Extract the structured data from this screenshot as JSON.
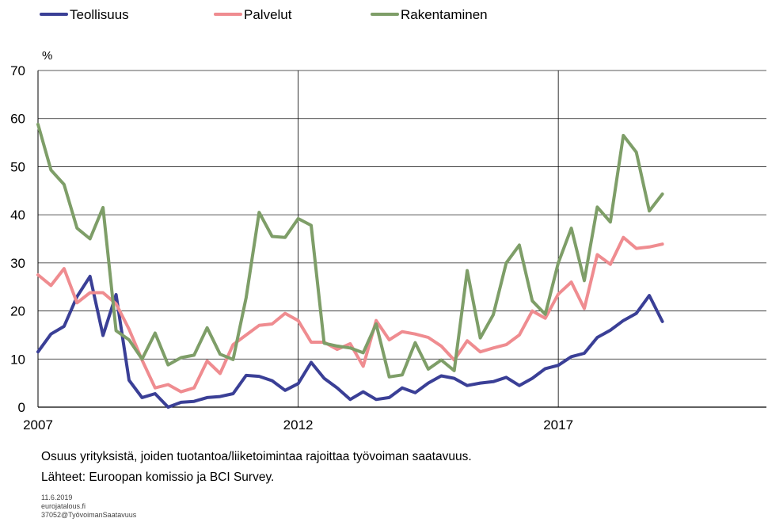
{
  "chart_data": {
    "type": "line",
    "ylabel": "%",
    "ylim": [
      0,
      70
    ],
    "yticks": [
      0,
      10,
      20,
      30,
      40,
      50,
      60,
      70
    ],
    "xlim": [
      2007,
      2021
    ],
    "xticks": [
      2007,
      2012,
      2017
    ],
    "grid": {
      "horizontal": true,
      "vertical_at": [
        2012,
        2017
      ]
    },
    "legend": "top-left",
    "series": [
      {
        "name": "Teollisuus",
        "color": "#3a3f96",
        "x": [
          2007.0,
          2007.25,
          2007.5,
          2007.75,
          2008.0,
          2008.25,
          2008.5,
          2008.75,
          2009.0,
          2009.25,
          2009.5,
          2009.75,
          2010.0,
          2010.25,
          2010.5,
          2010.75,
          2011.0,
          2011.25,
          2011.5,
          2011.75,
          2012.0,
          2012.25,
          2012.5,
          2012.75,
          2013.0,
          2013.25,
          2013.5,
          2013.75,
          2014.0,
          2014.25,
          2014.5,
          2014.75,
          2015.0,
          2015.25,
          2015.5,
          2015.75,
          2016.0,
          2016.25,
          2016.5,
          2016.75,
          2017.0,
          2017.25,
          2017.5,
          2017.75,
          2018.0,
          2018.25,
          2018.5,
          2018.75,
          2019.0
        ],
        "values": [
          11.5,
          15.2,
          16.8,
          23.0,
          27.2,
          14.9,
          23.4,
          5.6,
          2.0,
          2.8,
          0.0,
          1.0,
          1.2,
          2.0,
          2.2,
          2.8,
          6.6,
          6.4,
          5.5,
          3.5,
          4.9,
          9.3,
          6.0,
          4.0,
          1.6,
          3.2,
          1.6,
          2.0,
          4.0,
          3.0,
          5.0,
          6.5,
          6.0,
          4.5,
          5.0,
          5.3,
          6.2,
          4.5,
          6.0,
          8.0,
          8.7,
          10.5,
          11.2,
          14.5,
          16.0,
          18.0,
          19.5,
          23.2,
          17.8
        ]
      },
      {
        "name": "Palvelut",
        "color": "#ef8c90",
        "x": [
          2007.0,
          2007.25,
          2007.5,
          2007.75,
          2008.0,
          2008.25,
          2008.5,
          2008.75,
          2009.0,
          2009.25,
          2009.5,
          2009.75,
          2010.0,
          2010.25,
          2010.5,
          2010.75,
          2011.0,
          2011.25,
          2011.5,
          2011.75,
          2012.0,
          2012.25,
          2012.5,
          2012.75,
          2013.0,
          2013.25,
          2013.5,
          2013.75,
          2014.0,
          2014.25,
          2014.5,
          2014.75,
          2015.0,
          2015.25,
          2015.5,
          2015.75,
          2016.0,
          2016.25,
          2016.5,
          2016.75,
          2017.0,
          2017.25,
          2017.5,
          2017.75,
          2018.0,
          2018.25,
          2018.5,
          2018.75,
          2019.0
        ],
        "values": [
          27.5,
          25.3,
          28.8,
          21.7,
          23.8,
          23.8,
          21.5,
          16.2,
          9.8,
          4.0,
          4.7,
          3.2,
          4.0,
          9.6,
          7.0,
          13.0,
          15.0,
          17.0,
          17.3,
          19.5,
          18.0,
          13.5,
          13.5,
          12.0,
          13.2,
          8.5,
          18.0,
          14.0,
          15.7,
          15.2,
          14.5,
          12.7,
          9.8,
          13.8,
          11.5,
          12.3,
          13.0,
          15.0,
          20.0,
          18.5,
          23.5,
          26.0,
          20.5,
          31.7,
          29.7,
          35.3,
          33.0,
          33.3,
          33.9
        ]
      },
      {
        "name": "Rakentaminen",
        "color": "#7e9e68",
        "x": [
          2007.0,
          2007.25,
          2007.5,
          2007.75,
          2008.0,
          2008.25,
          2008.5,
          2008.75,
          2009.0,
          2009.25,
          2009.5,
          2009.75,
          2010.0,
          2010.25,
          2010.5,
          2010.75,
          2011.0,
          2011.25,
          2011.5,
          2011.75,
          2012.0,
          2012.25,
          2012.5,
          2012.75,
          2013.0,
          2013.25,
          2013.5,
          2013.75,
          2014.0,
          2014.25,
          2014.5,
          2014.75,
          2015.0,
          2015.25,
          2015.5,
          2015.75,
          2016.0,
          2016.25,
          2016.5,
          2016.75,
          2017.0,
          2017.25,
          2017.5,
          2017.75,
          2018.0,
          2018.25,
          2018.5,
          2018.75,
          2019.0
        ],
        "values": [
          58.8,
          49.3,
          46.3,
          37.2,
          35.0,
          41.5,
          15.9,
          14.0,
          10.0,
          15.4,
          8.8,
          10.3,
          10.8,
          16.5,
          11.0,
          9.9,
          22.8,
          40.5,
          35.5,
          35.3,
          39.2,
          37.8,
          13.3,
          12.7,
          12.3,
          11.3,
          17.3,
          6.3,
          6.7,
          13.4,
          7.9,
          9.8,
          7.6,
          28.4,
          14.4,
          19.2,
          30.0,
          33.7,
          22.1,
          19.3,
          30.0,
          37.2,
          26.3,
          41.6,
          38.5,
          56.5,
          53.0,
          40.8,
          44.3
        ]
      }
    ]
  },
  "caption": {
    "line1": "Osuus yrityksistä,  joiden tuotantoa/liiketoimintaa  rajoittaa  työvoiman  saatavuus.",
    "line2": "Lähteet:  Euroopan komissio ja BCI Survey."
  },
  "meta": {
    "date": "11.6.2019",
    "site": "eurojatalous.fi",
    "id": "37052@TyövoimanSaatavuus"
  }
}
